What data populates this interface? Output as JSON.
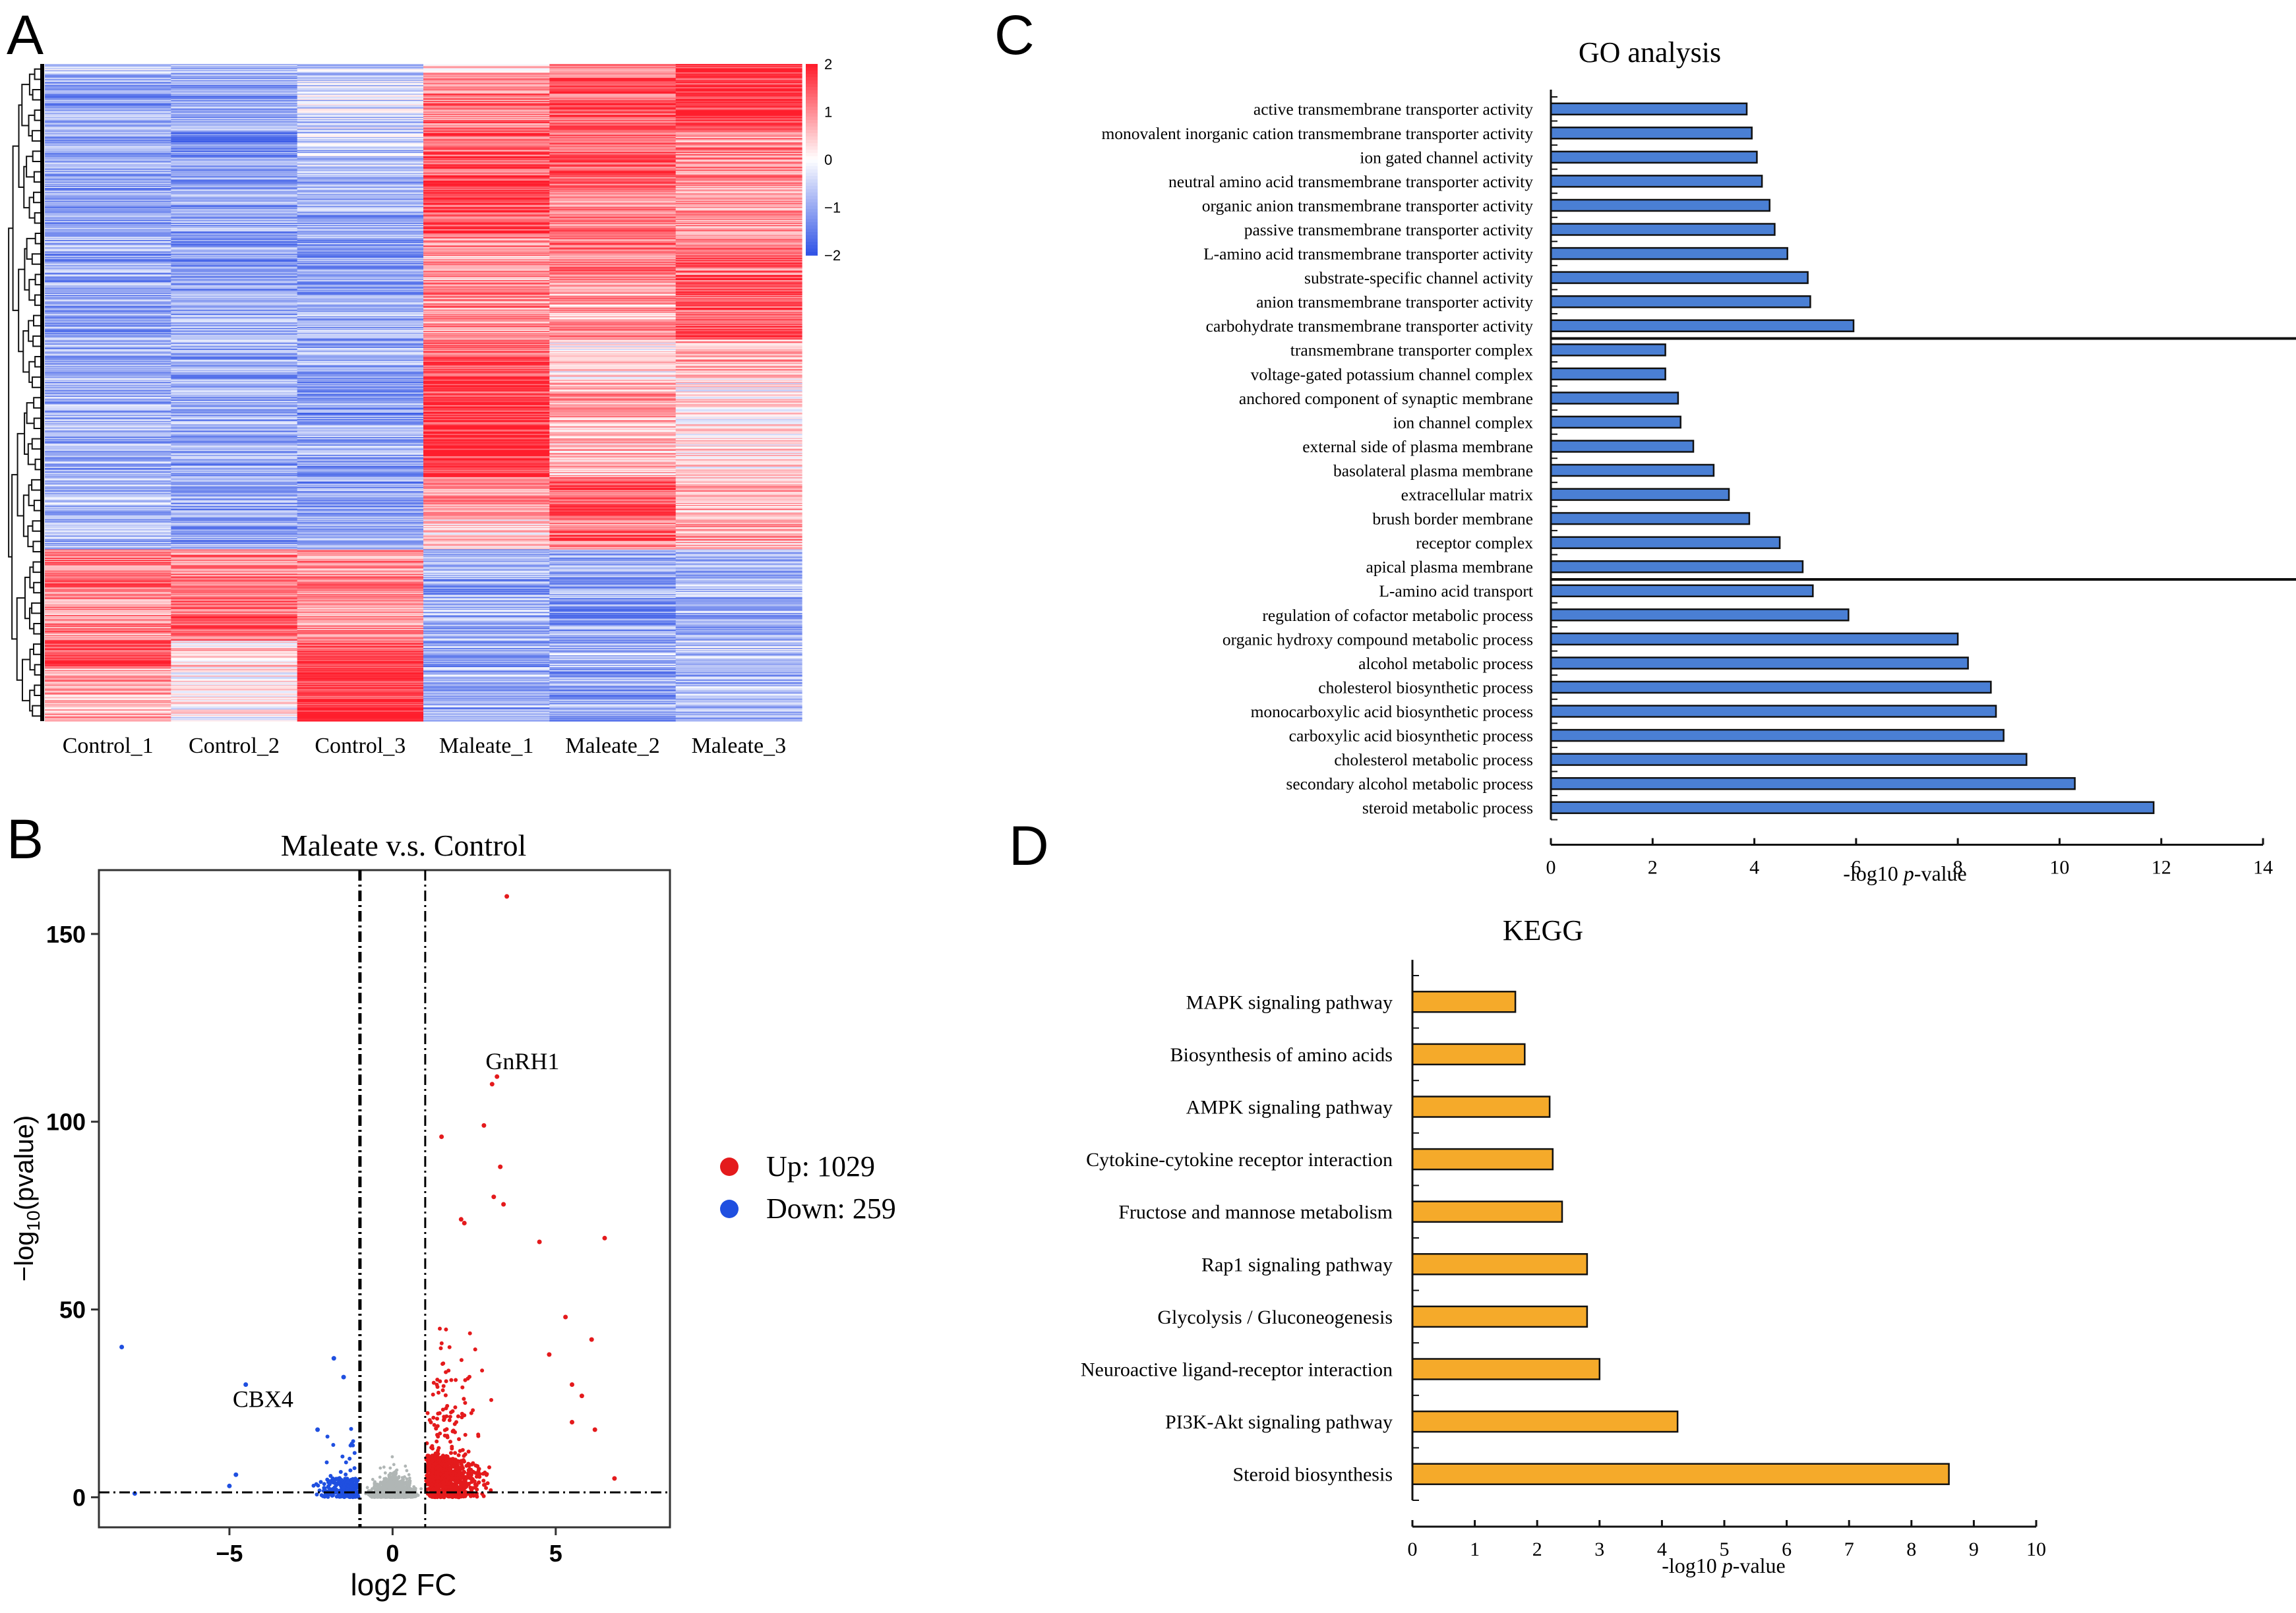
{
  "panels": {
    "a": "A",
    "b": "B",
    "c": "C",
    "d": "D"
  },
  "chart_data": [
    {
      "type": "heatmap",
      "panel": "A",
      "columns": [
        "Control_1",
        "Control_2",
        "Control_3",
        "Maleate_1",
        "Maleate_2",
        "Maleate_3"
      ],
      "colorbar": {
        "ticks": [
          2,
          1,
          0,
          -1,
          -2
        ],
        "tick_labels": [
          "2",
          "1",
          "0",
          "−1",
          "−2"
        ],
        "colors": {
          "high": "#ff1e2d",
          "mid": "#ffffff",
          "low": "#3355e6"
        }
      },
      "row_blocks": [
        {
          "fraction": 0.015,
          "values": [
            -0.4,
            -0.7,
            -0.6,
            0.6,
            1.0,
            1.9
          ]
        },
        {
          "fraction": 0.085,
          "values": [
            -1.0,
            -1.0,
            -0.5,
            1.2,
            1.4,
            1.8
          ]
        },
        {
          "fraction": 0.07,
          "values": [
            -0.9,
            -1.3,
            -0.6,
            1.4,
            1.2,
            1.0
          ]
        },
        {
          "fraction": 0.09,
          "values": [
            -1.0,
            -1.0,
            -1.0,
            1.6,
            1.2,
            0.9
          ]
        },
        {
          "fraction": 0.07,
          "values": [
            -1.0,
            -1.1,
            -1.0,
            0.9,
            1.2,
            1.3
          ]
        },
        {
          "fraction": 0.09,
          "values": [
            -1.0,
            -0.9,
            -0.9,
            1.0,
            0.8,
            1.5
          ]
        },
        {
          "fraction": 0.06,
          "values": [
            -1.0,
            -1.0,
            -0.9,
            1.5,
            0.2,
            0.8
          ]
        },
        {
          "fraction": 0.07,
          "values": [
            -0.9,
            -0.9,
            -1.1,
            1.7,
            0.8,
            0.1
          ]
        },
        {
          "fraction": 0.08,
          "values": [
            -0.9,
            -1.0,
            -1.0,
            1.9,
            0.6,
            0.3
          ]
        },
        {
          "fraction": 0.06,
          "values": [
            -0.7,
            -1.1,
            -1.2,
            0.8,
            1.6,
            0.6
          ]
        },
        {
          "fraction": 0.05,
          "values": [
            -0.8,
            -1.0,
            -0.8,
            0.3,
            1.2,
            0.7
          ]
        },
        {
          "fraction": 0.07,
          "values": [
            1.2,
            1.1,
            1.0,
            -1.0,
            -1.0,
            -0.8
          ]
        },
        {
          "fraction": 0.07,
          "values": [
            1.0,
            1.3,
            0.9,
            -0.9,
            -1.1,
            -0.9
          ]
        },
        {
          "fraction": 0.04,
          "values": [
            1.7,
            0.4,
            1.6,
            -1.0,
            -0.8,
            -0.7
          ]
        },
        {
          "fraction": 0.025,
          "values": [
            0.8,
            0.0,
            1.9,
            -0.9,
            -1.0,
            -0.8
          ]
        }
      ]
    },
    {
      "type": "scatter",
      "panel": "B",
      "title": "Maleate v.s. Control",
      "xlabel": "log2 FC",
      "ylabel_base": "−log",
      "ylabel_sub": "10",
      "ylabel_tail": "(pvalue)",
      "xlim": [
        -9,
        8.5
      ],
      "ylim": [
        -8,
        167
      ],
      "xticks": [
        -5,
        0,
        5
      ],
      "xtick_labels": [
        "−5",
        "0",
        "5"
      ],
      "yticks": [
        0,
        50,
        100,
        150
      ],
      "fc_threshold": 1,
      "p_threshold_y": 1.3,
      "colors": {
        "up": "#e41a1c",
        "down": "#1f4fe0",
        "ns": "#b0b6b5"
      },
      "legend": [
        {
          "label": "Up: 1029",
          "group": "up",
          "count": 1029
        },
        {
          "label": "Down: 259",
          "group": "down",
          "count": 259
        }
      ],
      "annotations": [
        {
          "text": "GnRH1",
          "x": 3.2,
          "y": 112
        },
        {
          "text": "CBX4",
          "x": -3.1,
          "y": 22
        }
      ],
      "highlight_points": [
        {
          "x": 3.5,
          "y": 160,
          "group": "up"
        },
        {
          "x": 3.2,
          "y": 112,
          "group": "up"
        },
        {
          "x": 3.05,
          "y": 110,
          "group": "up"
        },
        {
          "x": 2.8,
          "y": 99,
          "group": "up"
        },
        {
          "x": 3.3,
          "y": 88,
          "group": "up"
        },
        {
          "x": 3.4,
          "y": 78,
          "group": "up"
        },
        {
          "x": 3.1,
          "y": 80,
          "group": "up"
        },
        {
          "x": 2.2,
          "y": 73,
          "group": "up"
        },
        {
          "x": 2.1,
          "y": 74,
          "group": "up"
        },
        {
          "x": 1.5,
          "y": 96,
          "group": "up"
        },
        {
          "x": 6.5,
          "y": 69,
          "group": "up"
        },
        {
          "x": 4.5,
          "y": 68,
          "group": "up"
        },
        {
          "x": 6.1,
          "y": 42,
          "group": "up"
        },
        {
          "x": 5.3,
          "y": 48,
          "group": "up"
        },
        {
          "x": 5.8,
          "y": 27,
          "group": "up"
        },
        {
          "x": 6.2,
          "y": 18,
          "group": "up"
        },
        {
          "x": 5.5,
          "y": 30,
          "group": "up"
        },
        {
          "x": 4.8,
          "y": 38,
          "group": "up"
        },
        {
          "x": 6.8,
          "y": 5,
          "group": "up"
        },
        {
          "x": 5.5,
          "y": 20,
          "group": "up"
        },
        {
          "x": -8.3,
          "y": 40,
          "group": "down"
        },
        {
          "x": -4.5,
          "y": 30,
          "group": "down"
        },
        {
          "x": -1.8,
          "y": 37,
          "group": "down"
        },
        {
          "x": -1.5,
          "y": 32,
          "group": "down"
        },
        {
          "x": -2.3,
          "y": 18,
          "group": "down"
        },
        {
          "x": -4.8,
          "y": 6,
          "group": "down"
        },
        {
          "x": -7.9,
          "y": 1,
          "group": "down"
        },
        {
          "x": -5.0,
          "y": 3,
          "group": "down"
        }
      ],
      "bulk_seed": 7
    },
    {
      "type": "bar",
      "orientation": "horizontal",
      "panel": "C",
      "title": "GO analysis",
      "xlabel_main": "-log10 ",
      "xlabel_italic": "p",
      "xlabel_tail": "-value",
      "xlim": [
        0,
        14
      ],
      "xticks": [
        0,
        2,
        4,
        6,
        8,
        10,
        12,
        14
      ],
      "bar_color": "#4a7fd4",
      "group_dividers_after": [
        9,
        19
      ],
      "categories": [
        "active transmembrane transporter activity",
        "monovalent inorganic cation transmembrane transporter activity",
        "ion gated channel activity",
        "neutral amino acid transmembrane transporter activity",
        "organic anion transmembrane transporter activity",
        "passive transmembrane transporter activity",
        "L-amino acid transmembrane transporter activity",
        "substrate-specific channel activity",
        "anion transmembrane transporter activity",
        "carbohydrate transmembrane transporter activity",
        "transmembrane transporter complex",
        "voltage-gated potassium channel complex",
        "anchored component of synaptic membrane",
        "ion channel complex",
        "external side of plasma membrane",
        "basolateral plasma membrane",
        "extracellular matrix",
        "brush border membrane",
        "receptor complex",
        "apical plasma membrane",
        "L-amino acid transport",
        "regulation of cofactor metabolic process",
        "organic hydroxy compound metabolic process",
        "alcohol metabolic process",
        "cholesterol biosynthetic process",
        "monocarboxylic acid biosynthetic process",
        "carboxylic acid biosynthetic process",
        "cholesterol metabolic process",
        "secondary alcohol metabolic process",
        "steroid metabolic process"
      ],
      "values": [
        3.85,
        3.95,
        4.05,
        4.15,
        4.3,
        4.4,
        4.65,
        5.05,
        5.1,
        5.95,
        2.25,
        2.25,
        2.5,
        2.55,
        2.8,
        3.2,
        3.5,
        3.9,
        4.5,
        4.95,
        5.15,
        5.85,
        8.0,
        8.2,
        8.65,
        8.75,
        8.9,
        9.35,
        10.3,
        11.85
      ]
    },
    {
      "type": "bar",
      "orientation": "horizontal",
      "panel": "D",
      "title": "KEGG",
      "xlabel_main": "-log10 ",
      "xlabel_italic": "p",
      "xlabel_tail": "-value",
      "xlim": [
        0,
        10
      ],
      "xticks": [
        0,
        1,
        2,
        3,
        4,
        5,
        6,
        7,
        8,
        9,
        10
      ],
      "bar_color": "#f5aa2a",
      "categories": [
        "MAPK signaling pathway",
        "Biosynthesis of amino acids",
        "AMPK signaling pathway",
        "Cytokine-cytokine receptor interaction",
        "Fructose and mannose metabolism",
        "Rap1 signaling pathway",
        "Glycolysis / Gluconeogenesis",
        "Neuroactive ligand-receptor interaction",
        "PI3K-Akt signaling pathway",
        "Steroid biosynthesis"
      ],
      "values": [
        1.65,
        1.8,
        2.2,
        2.25,
        2.4,
        2.8,
        2.8,
        3.0,
        4.25,
        8.6
      ]
    }
  ]
}
